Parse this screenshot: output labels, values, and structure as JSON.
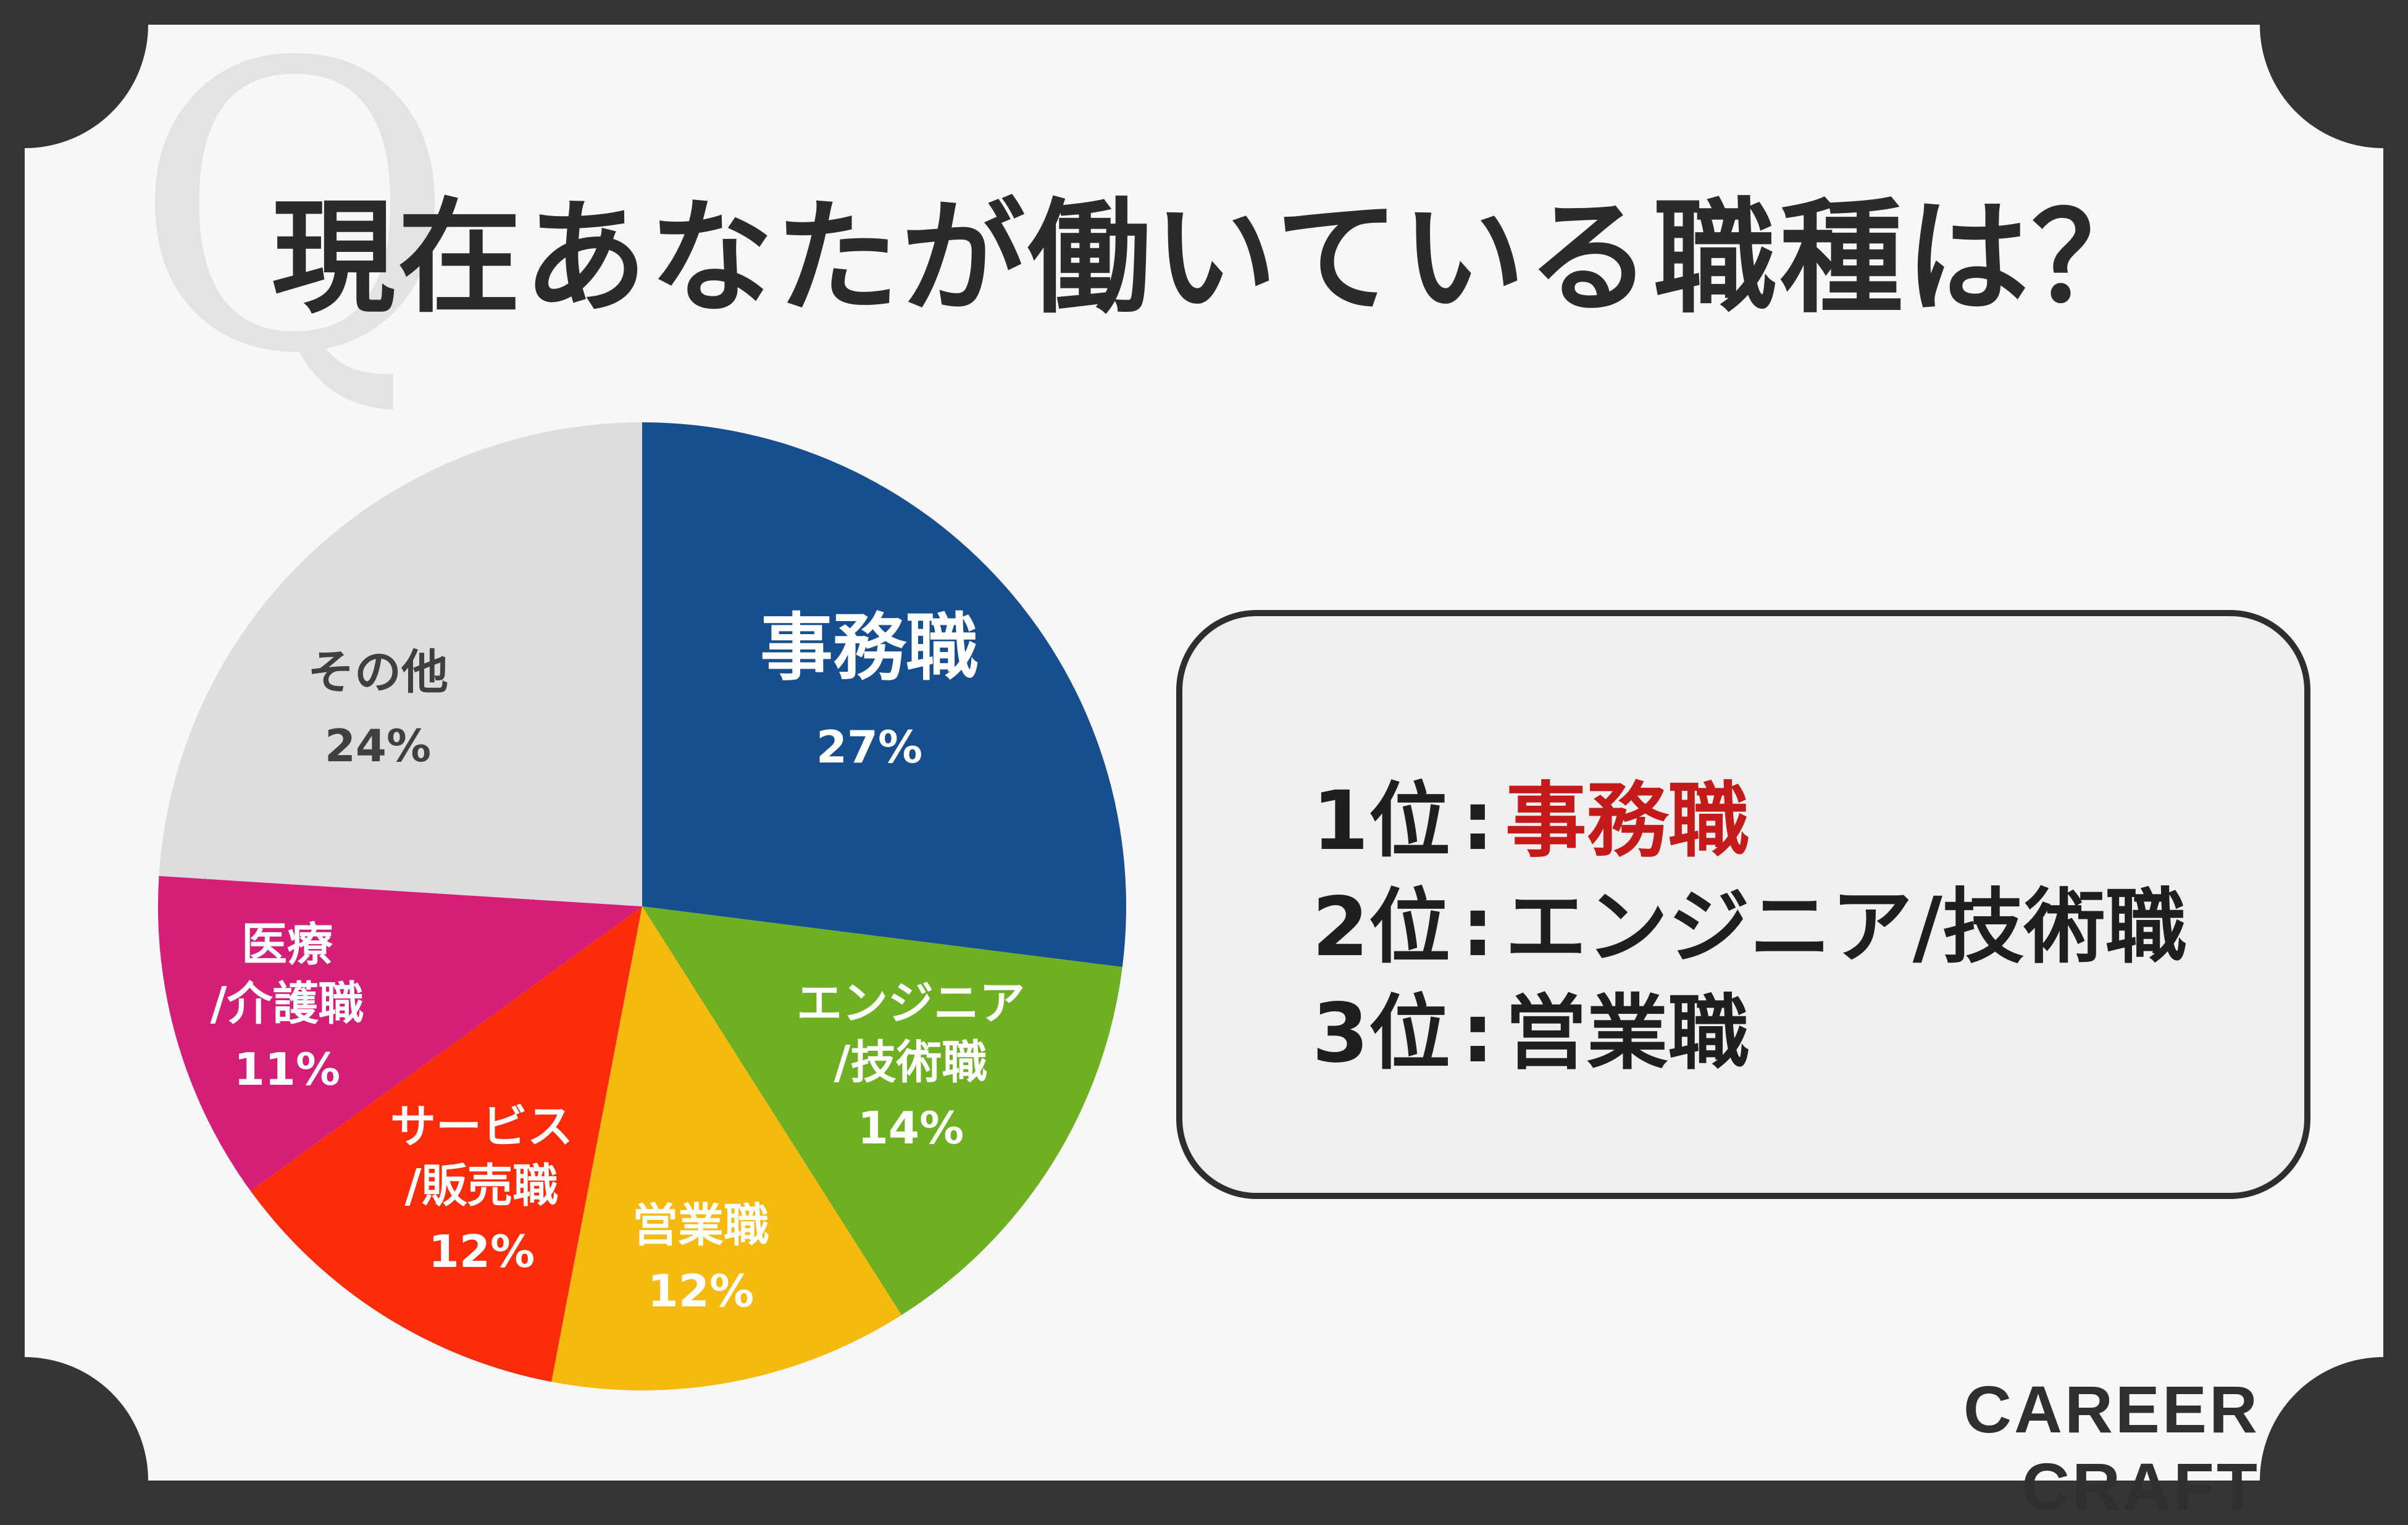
{
  "title": "現在あなたが働いている職種は？",
  "watermark": "Q",
  "chart_data": {
    "type": "pie",
    "start_angle_deg": 0,
    "direction": "clockwise",
    "slices": [
      {
        "label": "事務職",
        "value": 27,
        "display": "27%",
        "color": "#174e8f"
      },
      {
        "label": "エンジニア\n/技術職",
        "value": 14,
        "display": "14%",
        "color": "#6fb022"
      },
      {
        "label": "営業職",
        "value": 12,
        "display": "12%",
        "color": "#f6b90d"
      },
      {
        "label": "サービス\n/販売職",
        "value": 12,
        "display": "12%",
        "color": "#fb2c0a"
      },
      {
        "label": "医療\n/介護職",
        "value": 11,
        "display": "11%",
        "color": "#d41e77"
      },
      {
        "label": "その他",
        "value": 24,
        "display": "24%",
        "color": "#dddddd"
      }
    ]
  },
  "ranking": [
    {
      "rank": "1位",
      "sep": ":",
      "value": "事務職"
    },
    {
      "rank": "2位",
      "sep": ":",
      "value": "エンジニア/技術職"
    },
    {
      "rank": "3位",
      "sep": ":",
      "value": "営業職"
    }
  ],
  "logo": "CAREER CRAFT"
}
